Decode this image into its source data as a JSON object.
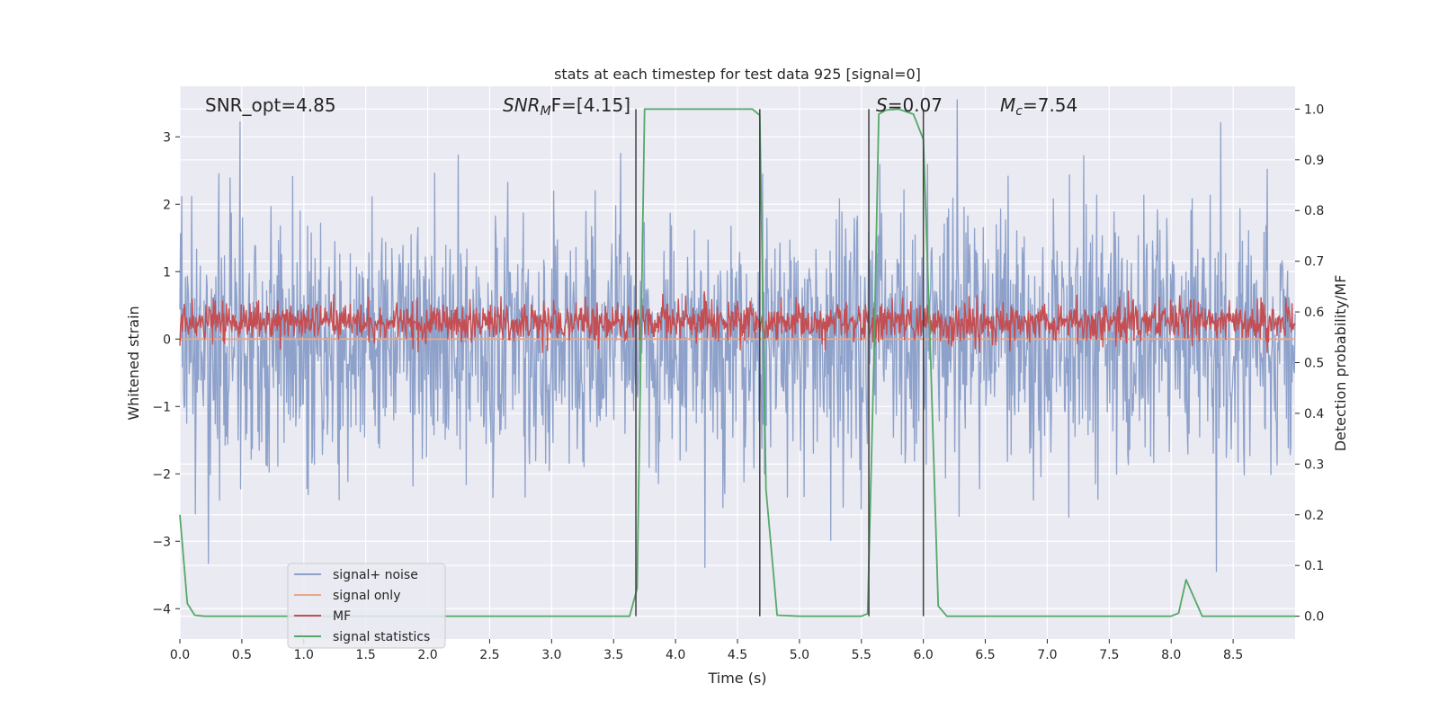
{
  "chart_data": {
    "type": "line",
    "title": "stats at each timestep for test data 925 [signal=0]",
    "xlabel": "Time (s)",
    "ylabel": "Whitened strain",
    "ylabel_right": "Detection probability/MF",
    "xlim": [
      0,
      9.0
    ],
    "ylim": [
      -4.45,
      3.75
    ],
    "ylim_right": [
      -0.045,
      1.045
    ],
    "xticks": [
      "0.0",
      "0.5",
      "1.0",
      "1.5",
      "2.0",
      "2.5",
      "3.0",
      "3.5",
      "4.0",
      "4.5",
      "5.0",
      "5.5",
      "6.0",
      "6.5",
      "7.0",
      "7.5",
      "8.0",
      "8.5"
    ],
    "yticks": [
      "−4",
      "−3",
      "−2",
      "−1",
      "0",
      "1",
      "2",
      "3"
    ],
    "yticks_right": [
      "0.0",
      "0.1",
      "0.2",
      "0.3",
      "0.4",
      "0.5",
      "0.6",
      "0.7",
      "0.8",
      "0.9",
      "1.0"
    ],
    "grid": true,
    "legend_position": "lower-left",
    "annotations": {
      "snr_opt": "SNR_opt=4.85",
      "snr_mf_label": "SNR",
      "snr_mf_sub": "M",
      "snr_mf_suffix": "F=[4.15]",
      "s_label": "S",
      "s_value": "=0.07",
      "mc_label": "M",
      "mc_sub": "c",
      "mc_value": "=7.54"
    },
    "vertical_markers": [
      3.68,
      4.68,
      5.56,
      6.0
    ],
    "series": [
      {
        "name": "signal+ noise",
        "color": "#8da1ca",
        "axis": "left",
        "style": "noise",
        "x_range": [
          0,
          9.0
        ],
        "samples": 1800,
        "std": 1.0,
        "range": [
          -3.9,
          3.55
        ]
      },
      {
        "name": "signal only",
        "color": "#e8a88a",
        "axis": "left",
        "x": [
          0,
          9.0
        ],
        "values": [
          0,
          0
        ]
      },
      {
        "name": "MF",
        "color": "#c44e52",
        "axis": "right",
        "style": "noise",
        "x_range": [
          0,
          9.0
        ],
        "samples": 1800,
        "center": 0.58,
        "std": 0.02,
        "range": [
          0.52,
          0.65
        ]
      },
      {
        "name": "signal statistics",
        "color": "#55a868",
        "axis": "right",
        "x": [
          0.0,
          0.06,
          0.12,
          0.2,
          0.5,
          1.0,
          1.5,
          2.0,
          2.5,
          3.0,
          3.5,
          3.63,
          3.69,
          3.75,
          4.0,
          4.3,
          4.62,
          4.68,
          4.73,
          4.82,
          5.0,
          5.3,
          5.5,
          5.55,
          5.6,
          5.64,
          5.7,
          5.8,
          5.92,
          6.0,
          6.06,
          6.12,
          6.19,
          6.5,
          7.0,
          7.5,
          8.0,
          8.06,
          8.12,
          8.25,
          8.5,
          9.0
        ],
        "values": [
          0.2,
          0.025,
          0.002,
          0.0,
          0.0,
          0.0,
          0.0,
          0.0,
          0.0,
          0.0,
          0.0,
          0.0,
          0.055,
          1.0,
          1.0,
          1.0,
          1.0,
          0.988,
          0.25,
          0.002,
          0.0,
          0.0,
          0.0,
          0.005,
          0.5,
          0.99,
          0.998,
          1.0,
          0.99,
          0.94,
          0.5,
          0.02,
          0.0,
          0.0,
          0.0,
          0.0,
          0.0,
          0.006,
          0.072,
          0.0,
          0.0,
          0.0
        ]
      }
    ]
  }
}
